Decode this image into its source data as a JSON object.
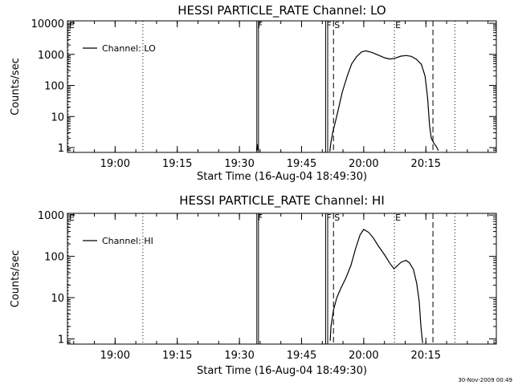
{
  "footer": {
    "timestamp": "30-Nov-2009 00:49"
  },
  "colors": {
    "foreground": "#000000",
    "background": "#ffffff"
  },
  "chart_data": [
    {
      "type": "line",
      "title": "HESSI PARTICLE_RATE Channel: LO",
      "xlabel": "Start Time (16-Aug-04 18:49:30)",
      "ylabel": "Counts/sec",
      "yscale": "log",
      "ylim": [
        0.7,
        12000
      ],
      "xlim_minutes": [
        -1,
        102.5
      ],
      "x_ticks": [
        {
          "m": 10.5,
          "label": "19:00"
        },
        {
          "m": 25.5,
          "label": "19:15"
        },
        {
          "m": 40.5,
          "label": "19:30"
        },
        {
          "m": 55.5,
          "label": "19:45"
        },
        {
          "m": 70.5,
          "label": "20:00"
        },
        {
          "m": 85.5,
          "label": "20:15"
        }
      ],
      "y_ticks": [
        {
          "v": 1,
          "label": "1"
        },
        {
          "v": 10,
          "label": "10"
        },
        {
          "v": 100,
          "label": "100"
        },
        {
          "v": 1000,
          "label": "1000"
        },
        {
          "v": 10000,
          "label": "10000"
        }
      ],
      "grid": false,
      "legend": {
        "position": "top-left",
        "entries": [
          "Channel: LO"
        ]
      },
      "markers": [
        {
          "label": "E",
          "m": -1,
          "style": "dotted"
        },
        {
          "label": "F",
          "m": 44.7,
          "style": "solid"
        },
        {
          "label": "",
          "m": 45.1,
          "style": "solid"
        },
        {
          "label": "F",
          "m": 61.3,
          "style": "solid"
        },
        {
          "label": "",
          "m": 61.8,
          "style": "solid"
        },
        {
          "label": "S",
          "m": 63.2,
          "style": "dashed"
        },
        {
          "label": "E",
          "m": 77.9,
          "style": "dotted"
        },
        {
          "label": "",
          "m": 17.2,
          "style": "dotted"
        },
        {
          "label": "",
          "m": 87.2,
          "style": "dashed"
        },
        {
          "label": "",
          "m": 92.5,
          "style": "dotted"
        }
      ],
      "series": [
        {
          "name": "Channel: LO",
          "segments": [
            [
              [
                44.6,
                0.8
              ],
              [
                44.8,
                1.3
              ],
              [
                45.0,
                0.8
              ]
            ],
            [
              [
                62.3,
                0.75
              ],
              [
                62.6,
                1.5
              ],
              [
                63.0,
                3
              ],
              [
                63.8,
                8
              ],
              [
                64.5,
                20
              ],
              [
                65.3,
                60
              ],
              [
                66.5,
                200
              ],
              [
                67.6,
                500
              ],
              [
                68.8,
                850
              ],
              [
                70.0,
                1200
              ],
              [
                71.0,
                1300
              ],
              [
                72.5,
                1150
              ],
              [
                74.0,
                950
              ],
              [
                75.5,
                780
              ],
              [
                76.8,
                710
              ],
              [
                78.0,
                750
              ],
              [
                79.5,
                880
              ],
              [
                80.8,
                920
              ],
              [
                82.0,
                860
              ],
              [
                83.2,
                700
              ],
              [
                84.4,
                480
              ],
              [
                85.3,
                200
              ],
              [
                85.9,
                40
              ],
              [
                86.4,
                5
              ],
              [
                86.8,
                2
              ],
              [
                87.4,
                1.4
              ],
              [
                88.0,
                1.1
              ],
              [
                88.5,
                0.8
              ]
            ]
          ]
        }
      ]
    },
    {
      "type": "line",
      "title": "HESSI PARTICLE_RATE Channel: HI",
      "xlabel": "Start Time (16-Aug-04 18:49:30)",
      "ylabel": "Counts/sec",
      "yscale": "log",
      "ylim": [
        0.75,
        1100
      ],
      "xlim_minutes": [
        -1,
        102.5
      ],
      "x_ticks": [
        {
          "m": 10.5,
          "label": "19:00"
        },
        {
          "m": 25.5,
          "label": "19:15"
        },
        {
          "m": 40.5,
          "label": "19:30"
        },
        {
          "m": 55.5,
          "label": "19:45"
        },
        {
          "m": 70.5,
          "label": "20:00"
        },
        {
          "m": 85.5,
          "label": "20:15"
        }
      ],
      "y_ticks": [
        {
          "v": 1,
          "label": "1"
        },
        {
          "v": 10,
          "label": "10"
        },
        {
          "v": 100,
          "label": "100"
        },
        {
          "v": 1000,
          "label": "1000"
        }
      ],
      "grid": false,
      "legend": {
        "position": "top-left",
        "entries": [
          "Channel: HI"
        ]
      },
      "markers": [
        {
          "label": "E",
          "m": -1,
          "style": "dotted"
        },
        {
          "label": "F",
          "m": 44.7,
          "style": "solid"
        },
        {
          "label": "",
          "m": 45.1,
          "style": "solid"
        },
        {
          "label": "F",
          "m": 61.3,
          "style": "solid"
        },
        {
          "label": "",
          "m": 61.8,
          "style": "solid"
        },
        {
          "label": "S",
          "m": 63.2,
          "style": "dashed"
        },
        {
          "label": "E",
          "m": 77.9,
          "style": "dotted"
        },
        {
          "label": "",
          "m": 17.2,
          "style": "dotted"
        },
        {
          "label": "",
          "m": 87.2,
          "style": "dashed"
        },
        {
          "label": "",
          "m": 92.5,
          "style": "dotted"
        }
      ],
      "series": [
        {
          "name": "Channel: HI",
          "segments": [
            [
              [
                62.4,
                0.9
              ],
              [
                62.6,
                2
              ],
              [
                63.2,
                5
              ],
              [
                64.0,
                10
              ],
              [
                65.0,
                17
              ],
              [
                66.2,
                30
              ],
              [
                67.4,
                60
              ],
              [
                68.5,
                150
              ],
              [
                69.6,
                330
              ],
              [
                70.5,
                450
              ],
              [
                71.7,
                380
              ],
              [
                72.8,
                280
              ],
              [
                74.0,
                180
              ],
              [
                75.5,
                110
              ],
              [
                76.8,
                68
              ],
              [
                77.8,
                50
              ],
              [
                78.5,
                58
              ],
              [
                79.5,
                72
              ],
              [
                80.7,
                80
              ],
              [
                81.5,
                70
              ],
              [
                82.5,
                48
              ],
              [
                83.3,
                22
              ],
              [
                83.9,
                8
              ],
              [
                84.3,
                2
              ],
              [
                84.7,
                0.8
              ]
            ]
          ]
        }
      ]
    }
  ]
}
